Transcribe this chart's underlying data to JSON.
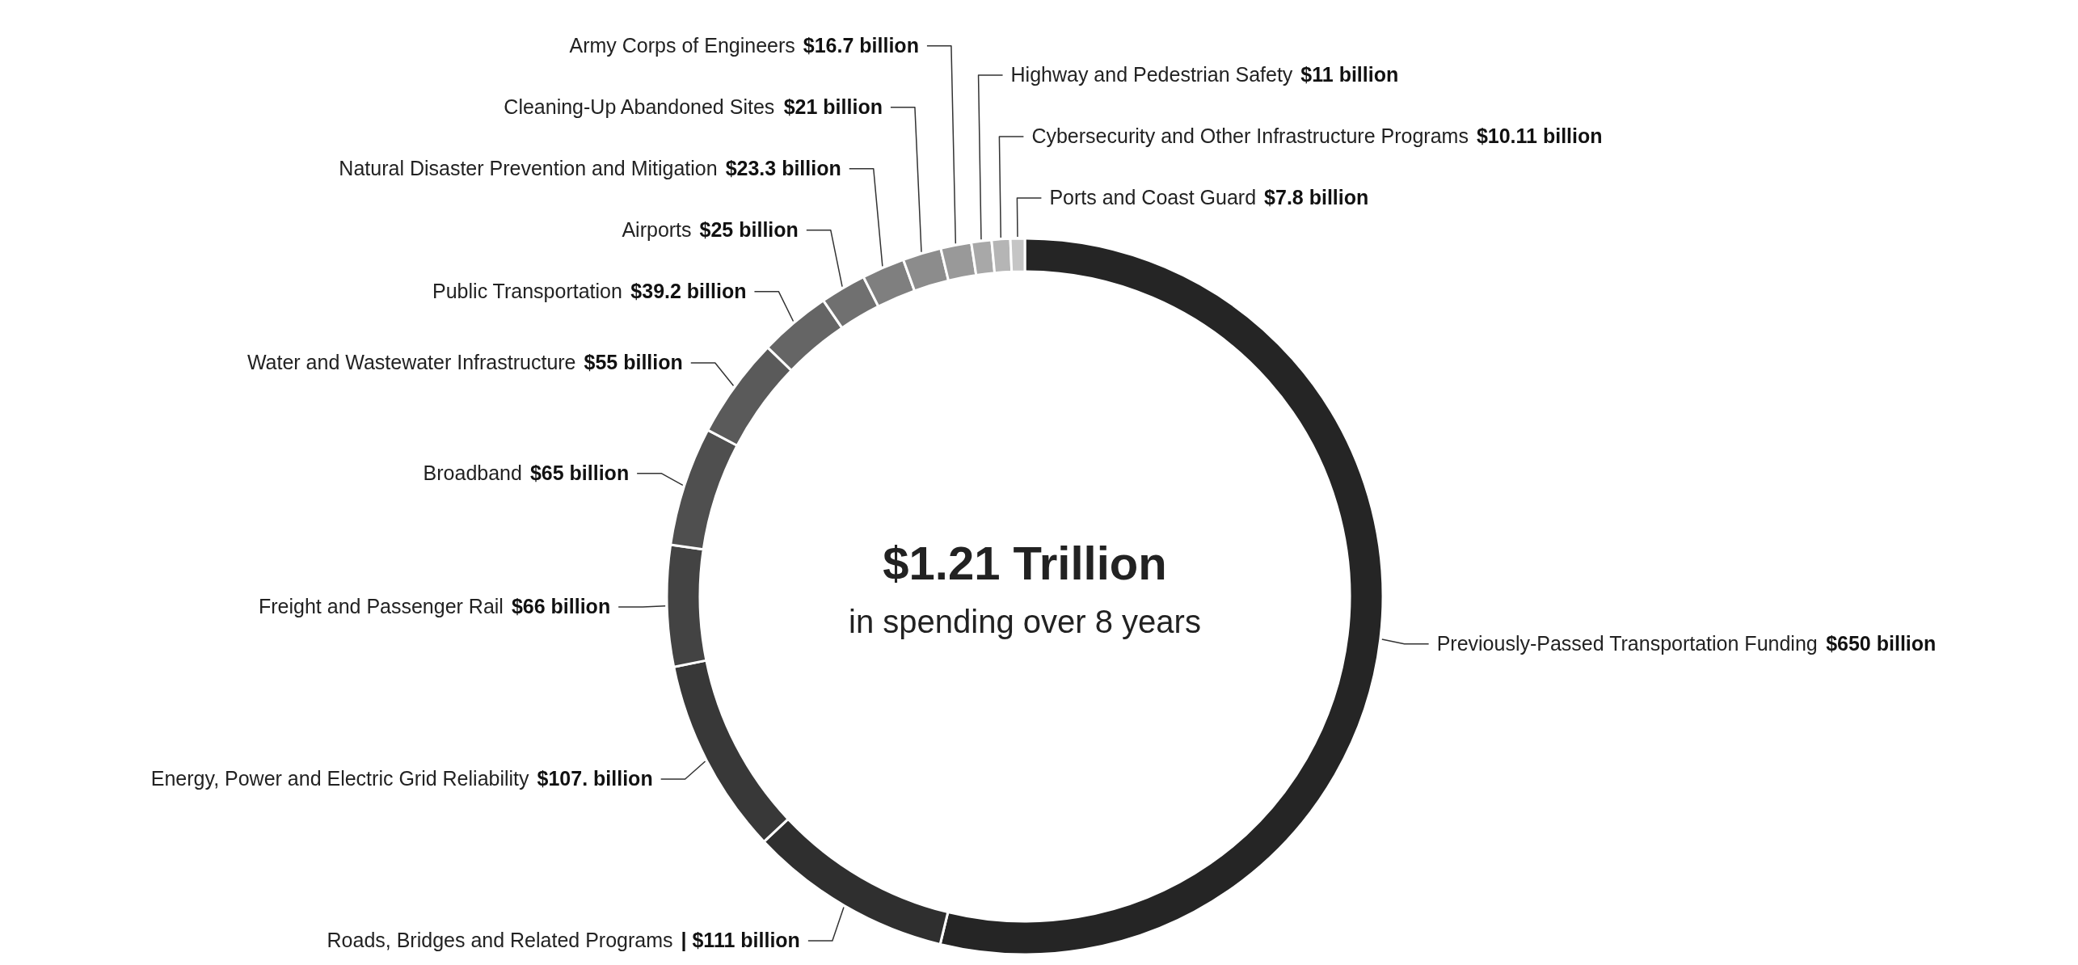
{
  "chart_data": {
    "type": "donut",
    "title": "$1.21 Trillion",
    "subtitle": "in spending over 8 years",
    "categories": [
      "Previously-Passed Transportation Funding",
      "Roads, Bridges and Related Programs",
      "Energy, Power and Electric Grid Reliability",
      "Freight and Passenger Rail",
      "Broadband",
      "Water and Wastewater Infrastructure",
      "Public Transportation",
      "Airports",
      "Natural Disaster Prevention and Mitigation",
      "Cleaning-Up Abandoned Sites",
      "Army Corps of Engineers",
      "Highway and Pedestrian Safety",
      "Cybersecurity and Other Infrastructure Programs",
      "Ports and Coast Guard"
    ],
    "values": [
      650,
      111,
      107,
      66,
      65,
      55,
      39.2,
      25,
      23.3,
      21,
      16.7,
      11,
      10.11,
      7.8
    ],
    "value_labels": [
      "$650 billion",
      "| $111 billion",
      "$107. billion",
      "$66 billion",
      "$65 billion",
      "$55 billion",
      "$39.2 billion",
      "$25 billion",
      "$23.3 billion",
      "$21 billion",
      "$16.7 billion",
      "$11 billion",
      "$10.11 billion",
      "$7.8 billion"
    ],
    "colors": [
      "#252525",
      "#2f2f2f",
      "#383838",
      "#434343",
      "#4f4f4f",
      "#5a5a5a",
      "#656565",
      "#707070",
      "#7f7f7f",
      "#8c8c8c",
      "#999999",
      "#a8a8a8",
      "#b5b5b5",
      "#c5c5c5"
    ]
  }
}
